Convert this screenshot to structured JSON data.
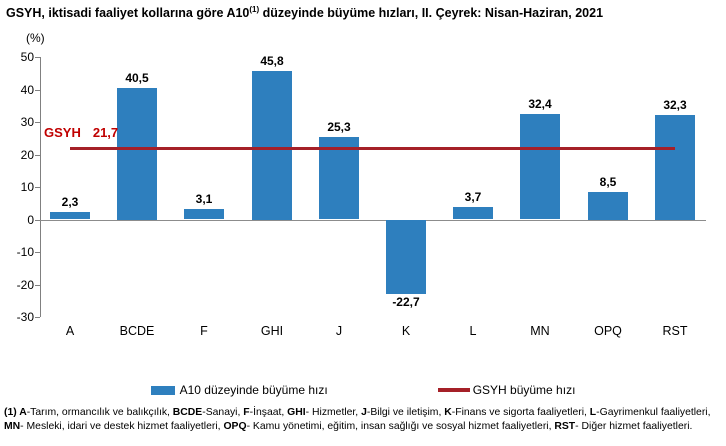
{
  "title": {
    "prefix": "GSYH, iktisadi faaliyet kollarına göre A10",
    "superscript": "(1)",
    "suffix": " düzeyinde büyüme hızları, II. Çeyrek: Nisan-Haziran, 2021"
  },
  "chart_data": {
    "type": "bar",
    "title": "GSYH, iktisadi faaliyet kollarına göre A10(1) düzeyinde büyüme hızları, II. Çeyrek: Nisan-Haziran, 2021",
    "unit_label": "(%)",
    "categories": [
      "A",
      "BCDE",
      "F",
      "GHI",
      "J",
      "K",
      "L",
      "MN",
      "OPQ",
      "RST"
    ],
    "values": [
      2.3,
      40.5,
      3.1,
      45.8,
      25.3,
      -22.7,
      3.7,
      32.4,
      8.5,
      32.3
    ],
    "value_labels": [
      "2,3",
      "40,5",
      "3,1",
      "45,8",
      "25,3",
      "-22,7",
      "3,7",
      "32,4",
      "8,5",
      "32,3"
    ],
    "ylim": [
      -30,
      50
    ],
    "yticks": [
      50,
      40,
      30,
      20,
      10,
      0,
      -10,
      -20,
      -30
    ],
    "grid": false,
    "bar_color": "#2E7FBE",
    "reference_line": {
      "name": "GSYH",
      "value": 21.7,
      "value_label": "21,7",
      "label_color": "#C00000",
      "line_color": "#A52028"
    },
    "legend_position": "bottom"
  },
  "legend": {
    "series": [
      {
        "label": "A10 düzeyinde büyüme hızı",
        "swatch": "bar",
        "color": "#2E7FBE"
      },
      {
        "label": "GSYH büyüme hızı",
        "swatch": "line",
        "color": "#A52028"
      }
    ]
  },
  "footnote": {
    "line1": [
      {
        "text": "(1) A",
        "bold": true
      },
      {
        "text": "-Tarım, ormancılık ve balıkçılık, ",
        "bold": false
      },
      {
        "text": "BCDE",
        "bold": true
      },
      {
        "text": "-Sanayi, ",
        "bold": false
      },
      {
        "text": "F",
        "bold": true
      },
      {
        "text": "-İnşaat, ",
        "bold": false
      },
      {
        "text": "GHI",
        "bold": true
      },
      {
        "text": "- Hizmetler, ",
        "bold": false
      },
      {
        "text": "J",
        "bold": true
      },
      {
        "text": "-Bilgi ve iletişim, ",
        "bold": false
      },
      {
        "text": "K",
        "bold": true
      },
      {
        "text": "-Finans ve sigorta faaliyetleri, ",
        "bold": false
      },
      {
        "text": "L",
        "bold": true
      },
      {
        "text": "-Gayrimenkul faaliyetleri,",
        "bold": false
      }
    ],
    "line2": [
      {
        "text": "MN",
        "bold": true
      },
      {
        "text": "- Mesleki, idari ve destek hizmet faaliyetleri, ",
        "bold": false
      },
      {
        "text": "OPQ",
        "bold": true
      },
      {
        "text": "- Kamu yönetimi, eğitim, insan sağlığı ve sosyal hizmet faaliyetleri, ",
        "bold": false
      },
      {
        "text": "RST",
        "bold": true
      },
      {
        "text": "- Diğer hizmet faaliyetleri.",
        "bold": false
      }
    ]
  }
}
